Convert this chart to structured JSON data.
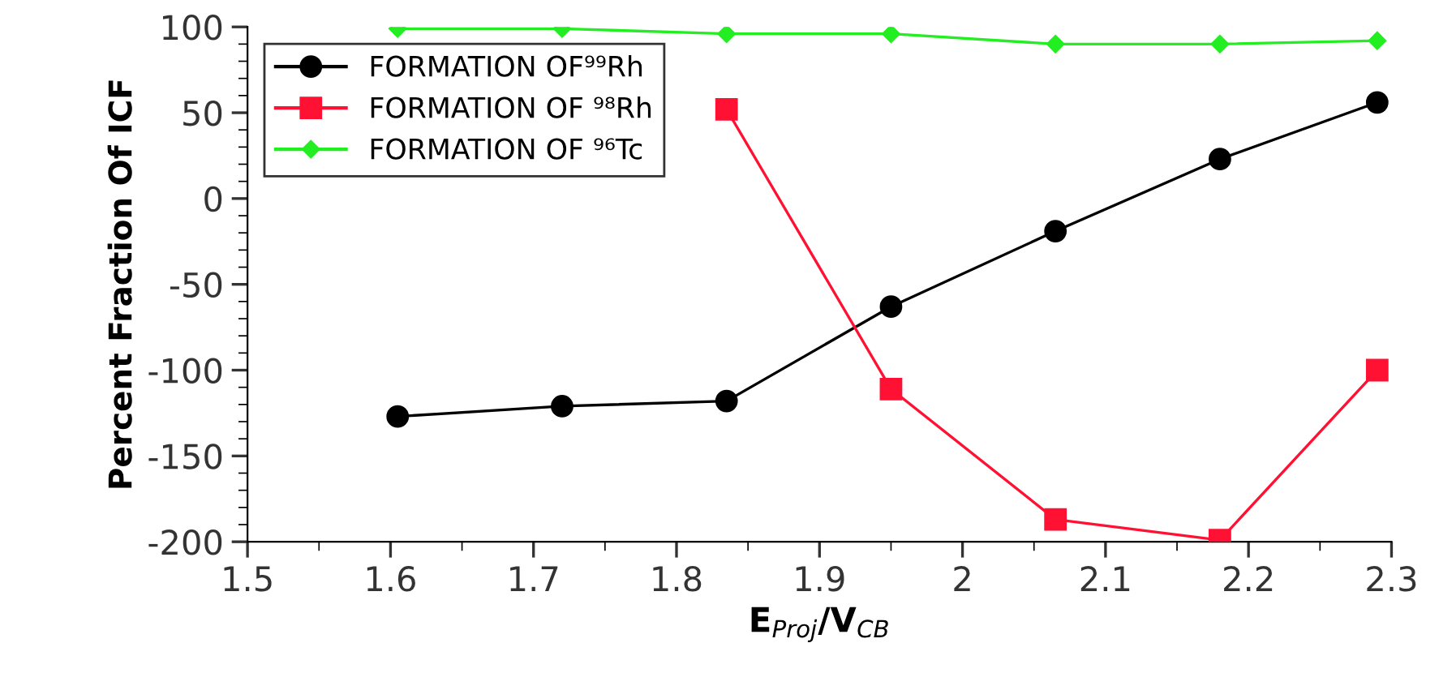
{
  "chart_data": {
    "type": "line",
    "xlabel": "E$_{Proj}$/V$_{CB}$",
    "ylabel": "Percent Fraction Of ICF",
    "x": [
      1.605,
      1.72,
      1.835,
      1.95,
      2.065,
      2.18,
      2.29
    ],
    "series": [
      {
        "name": "FORMATION OF⁹⁹Rh",
        "color": "#000000",
        "marker": "circle",
        "values": [
          -127,
          -121,
          -118,
          -63,
          -19,
          23,
          56
        ]
      },
      {
        "name": "FORMATION OF ⁹⁸Rh",
        "color": "#ff1133",
        "marker": "square",
        "x": [
          1.835,
          1.95,
          2.065,
          2.18,
          2.29
        ],
        "values": [
          52,
          -111,
          -187,
          -199,
          -100
        ]
      },
      {
        "name": "FORMATION OF ⁹⁶Tc",
        "color": "#22ee22",
        "marker": "diamond",
        "values": [
          99,
          99,
          96,
          96,
          90,
          90,
          92
        ]
      }
    ],
    "xlim": [
      1.5,
      2.3
    ],
    "xticks": [
      1.5,
      1.6,
      1.7,
      1.8,
      1.9,
      2,
      2.1,
      2.2,
      2.3
    ],
    "ylim": [
      -200,
      100
    ],
    "yticks": [
      -200,
      -150,
      -100,
      -50,
      0,
      50,
      100
    ],
    "legend": "top left",
    "grid": false,
    "line_style": "solid"
  }
}
